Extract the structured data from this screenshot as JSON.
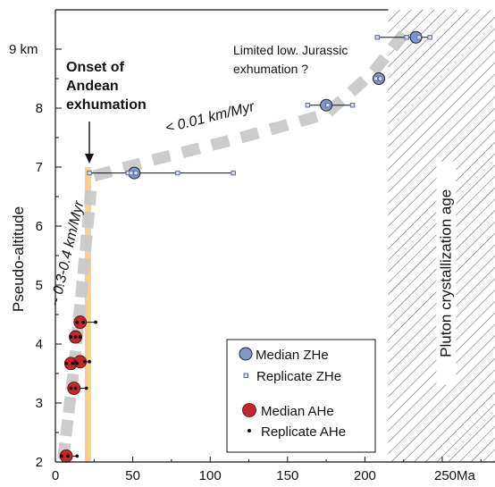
{
  "chart_data": {
    "type": "scatter",
    "title": "",
    "xlabel": "",
    "ylabel": "Pseudo-altitude",
    "xlim": [
      0,
      280
    ],
    "ylim": [
      2,
      9.8
    ],
    "x_ticks": [
      {
        "value": 0,
        "label": "0"
      },
      {
        "value": 50,
        "label": "50"
      },
      {
        "value": 100,
        "label": "100"
      },
      {
        "value": 150,
        "label": "150"
      },
      {
        "value": 200,
        "label": "200"
      },
      {
        "value": 250,
        "label": "250Ma"
      }
    ],
    "y_ticks": [
      {
        "value": 2,
        "label": "2"
      },
      {
        "value": 3,
        "label": "3"
      },
      {
        "value": 4,
        "label": "4"
      },
      {
        "value": 5,
        "label": "5"
      },
      {
        "value": 6,
        "label": "6"
      },
      {
        "value": 7,
        "label": "7"
      },
      {
        "value": 8,
        "label": "8"
      },
      {
        "value": 9,
        "label": "9 km"
      }
    ],
    "crystallization_zone": {
      "x_from": 215,
      "label": "Pluton crystallization age"
    },
    "onset_band": {
      "x_from": 19,
      "x_to": 23,
      "y_to": 7.0,
      "color": "#f9cf8f"
    },
    "trends": [
      {
        "name": "steep",
        "label": "~ 0.3-0.4 km/Myr",
        "points": [
          [
            5,
            2.05
          ],
          [
            12,
            3.6
          ],
          [
            18,
            5.2
          ],
          [
            23,
            6.6
          ]
        ]
      },
      {
        "name": "flat",
        "label": "< 0.01 km/Myr",
        "points": [
          [
            25,
            6.85
          ],
          [
            60,
            7.1
          ],
          [
            120,
            7.5
          ],
          [
            175,
            7.9
          ],
          [
            205,
            8.6
          ],
          [
            228,
            9.35
          ]
        ]
      }
    ],
    "series": [
      {
        "name": "Median ZHe",
        "color": "#8196cc",
        "points": [
          {
            "x": 51,
            "y": 6.9
          },
          {
            "x": 175,
            "y": 8.05
          },
          {
            "x": 209,
            "y": 8.5
          },
          {
            "x": 233,
            "y": 9.2
          }
        ]
      },
      {
        "name": "Replicate ZHe",
        "color": "#5e6f9e",
        "points": [
          {
            "x": 22,
            "y": 6.9
          },
          {
            "x": 47,
            "y": 6.9
          },
          {
            "x": 49,
            "y": 6.9
          },
          {
            "x": 52,
            "y": 6.9
          },
          {
            "x": 79,
            "y": 6.9
          },
          {
            "x": 115,
            "y": 6.9
          },
          {
            "x": 163,
            "y": 8.05
          },
          {
            "x": 176,
            "y": 8.05
          },
          {
            "x": 192,
            "y": 8.05
          },
          {
            "x": 207,
            "y": 8.5
          },
          {
            "x": 210,
            "y": 8.5
          },
          {
            "x": 208,
            "y": 9.2
          },
          {
            "x": 227,
            "y": 9.2
          },
          {
            "x": 235,
            "y": 9.2
          },
          {
            "x": 242,
            "y": 9.2
          }
        ]
      },
      {
        "name": "Median AHe",
        "color": "#c4262e",
        "points": [
          {
            "x": 7,
            "y": 2.1
          },
          {
            "x": 12,
            "y": 3.25
          },
          {
            "x": 10,
            "y": 3.67
          },
          {
            "x": 16,
            "y": 3.7
          },
          {
            "x": 13,
            "y": 4.12
          },
          {
            "x": 16,
            "y": 4.37
          }
        ]
      },
      {
        "name": "Replicate AHe",
        "color": "#111111",
        "points": [
          {
            "x": 4,
            "y": 2.1
          },
          {
            "x": 8,
            "y": 2.1
          },
          {
            "x": 14,
            "y": 2.1
          },
          {
            "x": 10,
            "y": 3.25
          },
          {
            "x": 13,
            "y": 3.25
          },
          {
            "x": 20,
            "y": 3.25
          },
          {
            "x": 7,
            "y": 3.67
          },
          {
            "x": 11,
            "y": 3.67
          },
          {
            "x": 14,
            "y": 3.67
          },
          {
            "x": 13,
            "y": 3.7
          },
          {
            "x": 19,
            "y": 3.7
          },
          {
            "x": 22,
            "y": 3.7
          },
          {
            "x": 10,
            "y": 4.12
          },
          {
            "x": 13,
            "y": 4.12
          },
          {
            "x": 16,
            "y": 4.12
          },
          {
            "x": 14,
            "y": 4.37
          },
          {
            "x": 18,
            "y": 4.37
          },
          {
            "x": 26,
            "y": 4.37
          }
        ]
      }
    ],
    "error_bars": [
      {
        "y": 6.9,
        "x_min": 22,
        "x_max": 115
      },
      {
        "y": 8.05,
        "x_min": 163,
        "x_max": 192
      },
      {
        "y": 8.5,
        "x_min": 207,
        "x_max": 210
      },
      {
        "y": 9.2,
        "x_min": 208,
        "x_max": 242
      },
      {
        "y": 2.1,
        "x_min": 4,
        "x_max": 14
      },
      {
        "y": 3.25,
        "x_min": 10,
        "x_max": 20
      },
      {
        "y": 3.67,
        "x_min": 7,
        "x_max": 14
      },
      {
        "y": 3.7,
        "x_min": 13,
        "x_max": 22
      },
      {
        "y": 4.12,
        "x_min": 10,
        "x_max": 16
      },
      {
        "y": 4.37,
        "x_min": 14,
        "x_max": 26
      }
    ],
    "annotations": [
      {
        "name": "onset-annotation",
        "lines": [
          "Onset of",
          "Andean",
          "exhumation"
        ]
      },
      {
        "name": "jurassic-annotation",
        "lines": [
          "Limited low. Jurassic",
          "exhumation ?"
        ]
      }
    ],
    "legend": {
      "placement": "bottom-right",
      "entries": [
        "Median ZHe",
        "Replicate ZHe",
        "Median AHe",
        "Replicate AHe"
      ]
    }
  }
}
